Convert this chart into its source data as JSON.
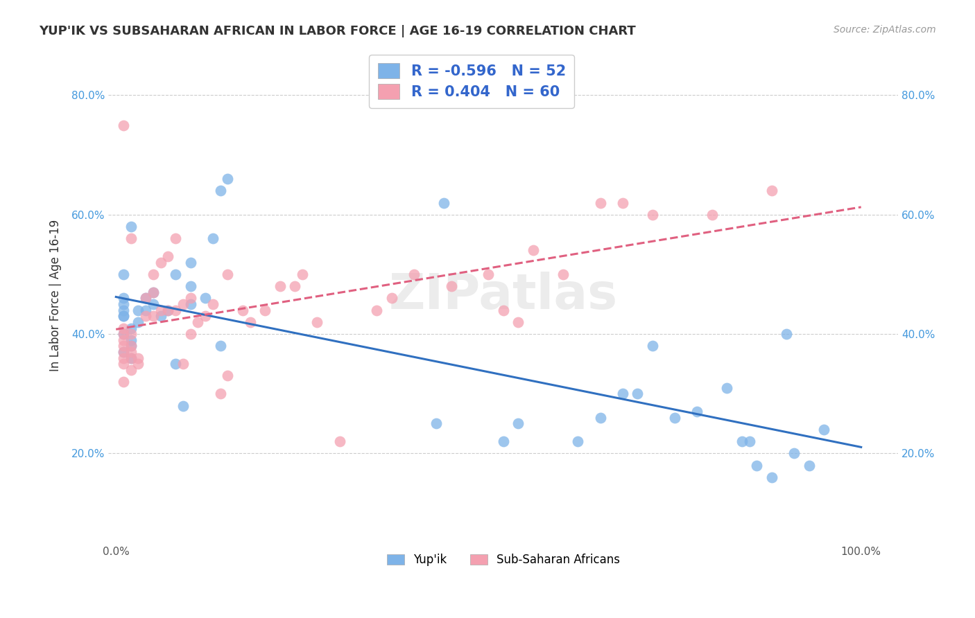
{
  "title": "YUP'IK VS SUBSAHARAN AFRICAN IN LABOR FORCE | AGE 16-19 CORRELATION CHART",
  "source": "Source: ZipAtlas.com",
  "xlabel": "",
  "ylabel": "In Labor Force | Age 16-19",
  "xlim": [
    -0.01,
    1.05
  ],
  "ylim": [
    0.05,
    0.88
  ],
  "xticks": [
    0.0,
    0.2,
    0.4,
    0.6,
    0.8,
    1.0
  ],
  "xticklabels": [
    "0.0%",
    "",
    "",
    "",
    "",
    "100.0%"
  ],
  "yticks": [
    0.2,
    0.4,
    0.6,
    0.8
  ],
  "yticklabels": [
    "20.0%",
    "40.0%",
    "60.0%",
    "80.0%"
  ],
  "blue_R": -0.596,
  "blue_N": 52,
  "pink_R": 0.404,
  "pink_N": 60,
  "blue_color": "#7EB3E8",
  "pink_color": "#F4A0B0",
  "blue_line_color": "#3070C0",
  "pink_line_color": "#E06080",
  "watermark": "ZIPatlas",
  "legend_label_blue": "Yup'ik",
  "legend_label_pink": "Sub-Saharan Africans",
  "blue_points_x": [
    0.01,
    0.01,
    0.01,
    0.01,
    0.01,
    0.01,
    0.01,
    0.01,
    0.02,
    0.02,
    0.02,
    0.02,
    0.02,
    0.03,
    0.03,
    0.04,
    0.04,
    0.05,
    0.05,
    0.06,
    0.07,
    0.08,
    0.08,
    0.09,
    0.1,
    0.1,
    0.1,
    0.12,
    0.13,
    0.14,
    0.14,
    0.15,
    0.43,
    0.44,
    0.52,
    0.54,
    0.62,
    0.65,
    0.68,
    0.7,
    0.72,
    0.75,
    0.78,
    0.82,
    0.84,
    0.85,
    0.86,
    0.88,
    0.9,
    0.91,
    0.93,
    0.95
  ],
  "blue_points_y": [
    0.37,
    0.4,
    0.43,
    0.43,
    0.44,
    0.45,
    0.46,
    0.5,
    0.36,
    0.38,
    0.39,
    0.41,
    0.58,
    0.42,
    0.44,
    0.44,
    0.46,
    0.45,
    0.47,
    0.43,
    0.44,
    0.35,
    0.5,
    0.28,
    0.45,
    0.48,
    0.52,
    0.46,
    0.56,
    0.38,
    0.64,
    0.66,
    0.25,
    0.62,
    0.22,
    0.25,
    0.22,
    0.26,
    0.3,
    0.3,
    0.38,
    0.26,
    0.27,
    0.31,
    0.22,
    0.22,
    0.18,
    0.16,
    0.4,
    0.2,
    0.18,
    0.24
  ],
  "pink_points_x": [
    0.01,
    0.01,
    0.01,
    0.01,
    0.01,
    0.01,
    0.01,
    0.01,
    0.01,
    0.02,
    0.02,
    0.02,
    0.02,
    0.02,
    0.02,
    0.03,
    0.03,
    0.04,
    0.04,
    0.05,
    0.05,
    0.05,
    0.06,
    0.06,
    0.07,
    0.07,
    0.08,
    0.08,
    0.09,
    0.09,
    0.1,
    0.1,
    0.11,
    0.12,
    0.13,
    0.14,
    0.15,
    0.15,
    0.17,
    0.18,
    0.2,
    0.22,
    0.24,
    0.25,
    0.27,
    0.3,
    0.35,
    0.37,
    0.4,
    0.45,
    0.5,
    0.52,
    0.54,
    0.56,
    0.6,
    0.65,
    0.68,
    0.72,
    0.8,
    0.88
  ],
  "pink_points_y": [
    0.32,
    0.35,
    0.36,
    0.37,
    0.38,
    0.39,
    0.4,
    0.41,
    0.75,
    0.34,
    0.36,
    0.37,
    0.38,
    0.4,
    0.56,
    0.35,
    0.36,
    0.43,
    0.46,
    0.43,
    0.47,
    0.5,
    0.44,
    0.52,
    0.44,
    0.53,
    0.44,
    0.56,
    0.35,
    0.45,
    0.4,
    0.46,
    0.42,
    0.43,
    0.45,
    0.3,
    0.33,
    0.5,
    0.44,
    0.42,
    0.44,
    0.48,
    0.48,
    0.5,
    0.42,
    0.22,
    0.44,
    0.46,
    0.5,
    0.48,
    0.5,
    0.44,
    0.42,
    0.54,
    0.5,
    0.62,
    0.62,
    0.6,
    0.6,
    0.64
  ]
}
